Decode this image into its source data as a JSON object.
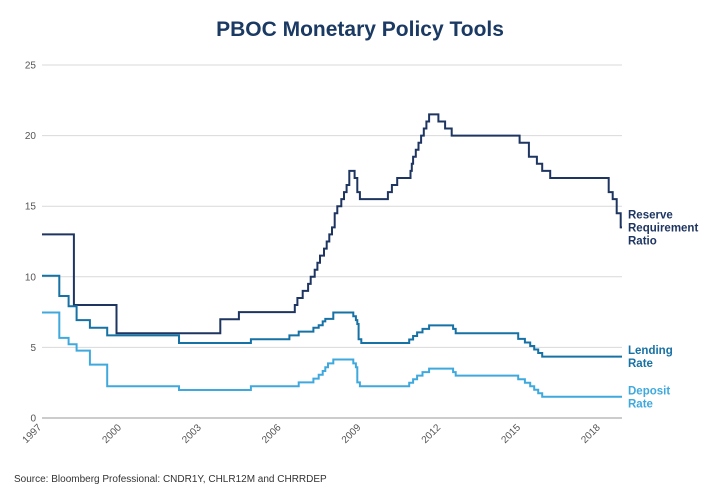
{
  "chart_data": {
    "type": "line",
    "title": "PBOC Monetary Policy Tools",
    "source": "Source: Bloomberg Professional: CNDR1Y, CHLR12M and CHRRDEP",
    "xlabel": "",
    "ylabel": "",
    "xlim": [
      1997.0,
      2018.8
    ],
    "ylim": [
      0,
      25
    ],
    "yticks": [
      0,
      5,
      10,
      15,
      20,
      25
    ],
    "xticks": [
      1997,
      2000,
      2003,
      2006,
      2009,
      2012,
      2015,
      2018
    ],
    "xtick_labels": [
      "1997",
      "2000",
      "2003",
      "2006",
      "2009",
      "2012",
      "2015",
      "2018"
    ],
    "grid": true,
    "series": [
      {
        "name": "Reserve Requirement Ratio",
        "label_lines": [
          "Reserve",
          "Requirement",
          "Ratio"
        ],
        "color": "#1e3561",
        "step": true,
        "points": [
          [
            1997.0,
            13
          ],
          [
            1998.2,
            8
          ],
          [
            1999.8,
            6
          ],
          [
            2003.7,
            7
          ],
          [
            2004.4,
            7.5
          ],
          [
            2006.5,
            8
          ],
          [
            2006.6,
            8.5
          ],
          [
            2006.8,
            9
          ],
          [
            2007.0,
            9.5
          ],
          [
            2007.1,
            10
          ],
          [
            2007.25,
            10.5
          ],
          [
            2007.35,
            11
          ],
          [
            2007.45,
            11.5
          ],
          [
            2007.6,
            12
          ],
          [
            2007.7,
            12.5
          ],
          [
            2007.8,
            13
          ],
          [
            2007.9,
            13.5
          ],
          [
            2008.0,
            14.5
          ],
          [
            2008.1,
            15
          ],
          [
            2008.25,
            15.5
          ],
          [
            2008.35,
            16
          ],
          [
            2008.45,
            16.5
          ],
          [
            2008.55,
            17.5
          ],
          [
            2008.75,
            17
          ],
          [
            2008.85,
            16
          ],
          [
            2008.95,
            15.5
          ],
          [
            2010.0,
            16
          ],
          [
            2010.15,
            16.5
          ],
          [
            2010.35,
            17
          ],
          [
            2010.85,
            17.5
          ],
          [
            2010.9,
            18
          ],
          [
            2010.95,
            18.5
          ],
          [
            2011.05,
            19
          ],
          [
            2011.15,
            19.5
          ],
          [
            2011.25,
            20
          ],
          [
            2011.35,
            20.5
          ],
          [
            2011.45,
            21
          ],
          [
            2011.55,
            21.5
          ],
          [
            2011.9,
            21
          ],
          [
            2012.15,
            20.5
          ],
          [
            2012.4,
            20
          ],
          [
            2014.95,
            19.5
          ],
          [
            2015.3,
            18.5
          ],
          [
            2015.6,
            18
          ],
          [
            2015.8,
            17.5
          ],
          [
            2016.1,
            17
          ],
          [
            2018.3,
            16
          ],
          [
            2018.45,
            15.5
          ],
          [
            2018.6,
            14.5
          ],
          [
            2018.75,
            13.5
          ],
          [
            2018.8,
            13.5
          ]
        ]
      },
      {
        "name": "Lending Rate",
        "label_lines": [
          "Lending",
          "Rate"
        ],
        "color": "#1671a5",
        "step": true,
        "points": [
          [
            1997.0,
            10.08
          ],
          [
            1997.65,
            8.64
          ],
          [
            1998.0,
            7.92
          ],
          [
            1998.3,
            6.93
          ],
          [
            1998.8,
            6.39
          ],
          [
            1999.45,
            5.85
          ],
          [
            2002.15,
            5.31
          ],
          [
            2004.85,
            5.58
          ],
          [
            2006.3,
            5.85
          ],
          [
            2006.65,
            6.12
          ],
          [
            2007.2,
            6.39
          ],
          [
            2007.4,
            6.57
          ],
          [
            2007.55,
            6.84
          ],
          [
            2007.65,
            7.02
          ],
          [
            2007.95,
            7.47
          ],
          [
            2008.7,
            7.2
          ],
          [
            2008.8,
            6.93
          ],
          [
            2008.85,
            6.66
          ],
          [
            2008.9,
            5.58
          ],
          [
            2009.0,
            5.31
          ],
          [
            2010.8,
            5.56
          ],
          [
            2010.95,
            5.81
          ],
          [
            2011.1,
            6.06
          ],
          [
            2011.3,
            6.31
          ],
          [
            2011.55,
            6.56
          ],
          [
            2012.45,
            6.31
          ],
          [
            2012.55,
            6.0
          ],
          [
            2014.9,
            5.6
          ],
          [
            2015.15,
            5.35
          ],
          [
            2015.35,
            5.1
          ],
          [
            2015.5,
            4.85
          ],
          [
            2015.65,
            4.6
          ],
          [
            2015.8,
            4.35
          ],
          [
            2018.8,
            4.35
          ]
        ]
      },
      {
        "name": "Deposit Rate",
        "label_lines": [
          "Deposit",
          "Rate"
        ],
        "color": "#3fa9de",
        "step": true,
        "points": [
          [
            1997.0,
            7.47
          ],
          [
            1997.65,
            5.67
          ],
          [
            1998.0,
            5.22
          ],
          [
            1998.3,
            4.77
          ],
          [
            1998.8,
            3.78
          ],
          [
            1999.45,
            2.25
          ],
          [
            2002.15,
            1.98
          ],
          [
            2004.85,
            2.25
          ],
          [
            2006.65,
            2.52
          ],
          [
            2007.2,
            2.79
          ],
          [
            2007.4,
            3.06
          ],
          [
            2007.55,
            3.33
          ],
          [
            2007.65,
            3.6
          ],
          [
            2007.75,
            3.87
          ],
          [
            2007.95,
            4.14
          ],
          [
            2008.7,
            3.87
          ],
          [
            2008.8,
            3.6
          ],
          [
            2008.85,
            2.52
          ],
          [
            2008.95,
            2.25
          ],
          [
            2010.8,
            2.5
          ],
          [
            2010.95,
            2.75
          ],
          [
            2011.1,
            3.0
          ],
          [
            2011.3,
            3.25
          ],
          [
            2011.55,
            3.5
          ],
          [
            2012.45,
            3.25
          ],
          [
            2012.55,
            3.0
          ],
          [
            2014.9,
            2.75
          ],
          [
            2015.15,
            2.5
          ],
          [
            2015.35,
            2.25
          ],
          [
            2015.5,
            2.0
          ],
          [
            2015.65,
            1.75
          ],
          [
            2015.8,
            1.5
          ],
          [
            2018.8,
            1.5
          ]
        ]
      }
    ]
  }
}
